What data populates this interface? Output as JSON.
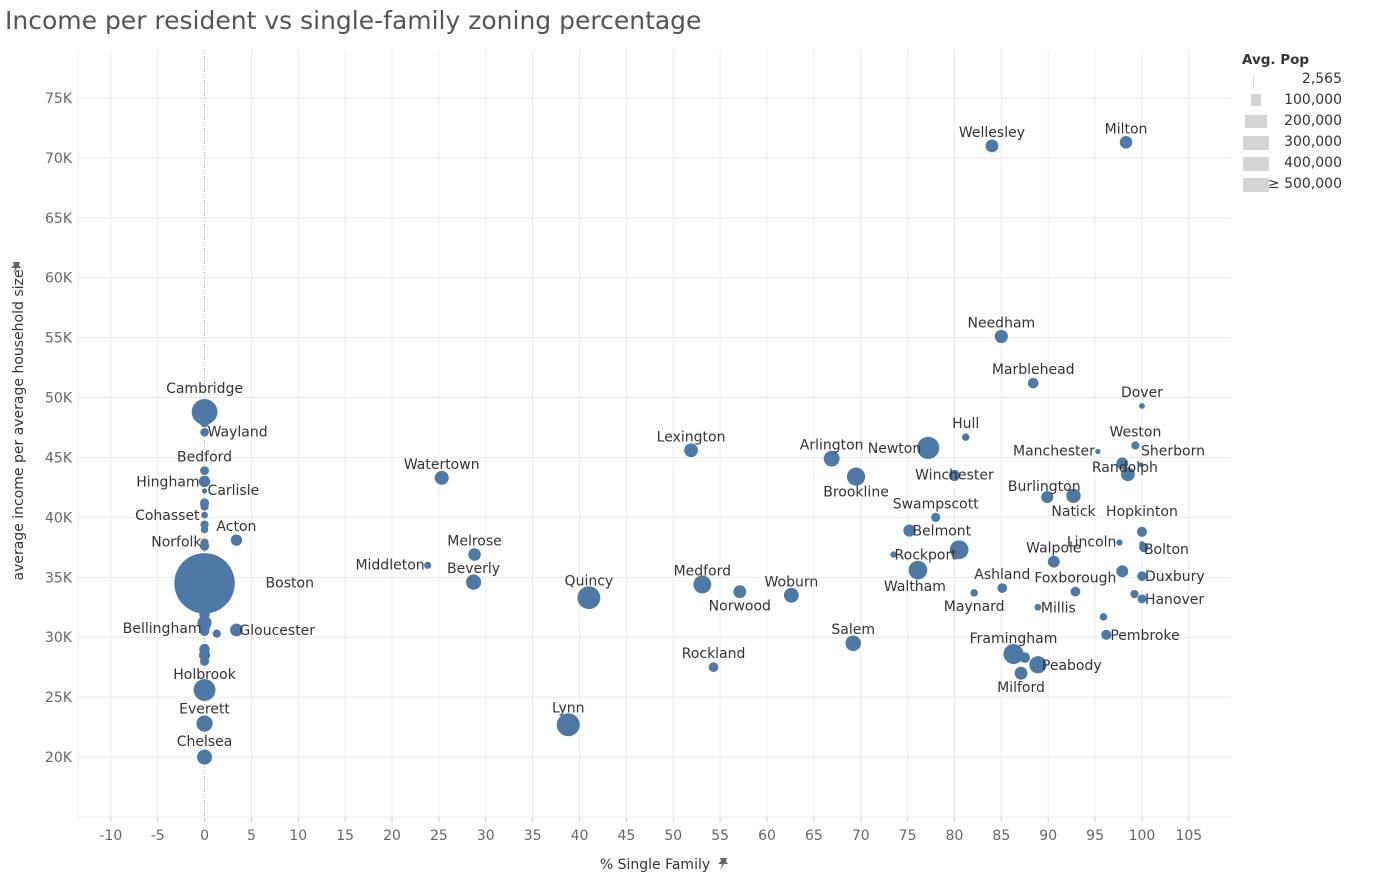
{
  "title": "Income per resident vs single-family zoning percentage",
  "legend": {
    "title": "Avg. Pop",
    "items": [
      "2,565",
      "100,000",
      "200,000",
      "300,000",
      "400,000",
      "≥ 500,000"
    ]
  },
  "colors": {
    "point": "#4e79a7",
    "grid": "#ececec",
    "zeroline": "#b0b0b0"
  },
  "chart_data": {
    "type": "scatter",
    "title": "Income per resident vs single-family zoning percentage",
    "xlabel": "% Single Family",
    "ylabel": "average income per average household size",
    "xlim": [
      -13.5,
      109.5
    ],
    "ylim": [
      15000,
      79000
    ],
    "xticks": [
      -10,
      -5,
      0,
      5,
      10,
      15,
      20,
      25,
      30,
      35,
      40,
      45,
      50,
      55,
      60,
      65,
      70,
      75,
      80,
      85,
      90,
      95,
      100,
      105
    ],
    "xtick_labels": [
      "-10",
      "-5",
      "0",
      "5",
      "10",
      "15",
      "20",
      "25",
      "30",
      "35",
      "40",
      "45",
      "50",
      "55",
      "60",
      "65",
      "70",
      "75",
      "80",
      "85",
      "90",
      "95",
      "100",
      "105"
    ],
    "yticks": [
      20000,
      25000,
      30000,
      35000,
      40000,
      45000,
      50000,
      55000,
      60000,
      65000,
      70000,
      75000
    ],
    "ytick_labels": [
      "20K",
      "25K",
      "30K",
      "35K",
      "40K",
      "45K",
      "50K",
      "55K",
      "60K",
      "65K",
      "70K",
      "75K"
    ],
    "grid": true,
    "legend_position": "top-right",
    "points": [
      {
        "label": "Wellesley",
        "x": 84,
        "y": 71000,
        "pop": 29000,
        "lx": 0,
        "ly": -9,
        "anchor": "middle"
      },
      {
        "label": "Milton",
        "x": 98.3,
        "y": 71300,
        "pop": 28000,
        "lx": 0,
        "ly": -9,
        "anchor": "middle"
      },
      {
        "label": "Needham",
        "x": 85,
        "y": 55100,
        "pop": 31000,
        "lx": 0,
        "ly": -9,
        "anchor": "middle"
      },
      {
        "label": "Marblehead",
        "x": 88.4,
        "y": 51200,
        "pop": 20000,
        "lx": 0,
        "ly": -9,
        "anchor": "middle"
      },
      {
        "label": "Dover",
        "x": 100,
        "y": 49300,
        "pop": 6000,
        "lx": 0,
        "ly": -9,
        "anchor": "middle"
      },
      {
        "label": "Cambridge",
        "x": 0,
        "y": 48800,
        "pop": 118000,
        "lx": 0,
        "ly": -19,
        "anchor": "middle"
      },
      {
        "label": null,
        "x": 0,
        "y": 47900,
        "pop": 15000
      },
      {
        "label": "Wayland",
        "x": 0,
        "y": 47100,
        "pop": 13000,
        "lx": 3,
        "ly": 4,
        "anchor": "start"
      },
      {
        "label": "Hull",
        "x": 81.2,
        "y": 46700,
        "pop": 10000,
        "lx": 0,
        "ly": -9,
        "anchor": "middle"
      },
      {
        "label": "Weston",
        "x": 99.3,
        "y": 46000,
        "pop": 12000,
        "lx": 0,
        "ly": -9,
        "anchor": "middle"
      },
      {
        "label": "Newton",
        "x": 77.2,
        "y": 45800,
        "pop": 88000,
        "lx": -7,
        "ly": 5,
        "anchor": "end"
      },
      {
        "label": "Lexington",
        "x": 51.9,
        "y": 45600,
        "pop": 34000,
        "lx": 0,
        "ly": -9,
        "anchor": "middle"
      },
      {
        "label": "Manchester",
        "x": 95.3,
        "y": 45500,
        "pop": 5000,
        "lx": -3,
        "ly": 4,
        "anchor": "end"
      },
      {
        "label": "Arlington",
        "x": 66.9,
        "y": 44900,
        "pop": 45000,
        "lx": 0,
        "ly": -9,
        "anchor": "middle"
      },
      {
        "label": "Sherborn",
        "x": 99.9,
        "y": 44400,
        "pop": 4000,
        "lx": 0,
        "ly": -9,
        "anchor": "start"
      },
      {
        "label": null,
        "x": 97.9,
        "y": 44500,
        "pop": 25000
      },
      {
        "label": "Randolph",
        "x": 98.5,
        "y": 43600,
        "pop": 34000,
        "lx": -3,
        "ly": -2,
        "anchor": "middle"
      },
      {
        "label": "Bedford",
        "x": 0,
        "y": 43900,
        "pop": 14000,
        "lx": 0,
        "ly": -9,
        "anchor": "middle"
      },
      {
        "label": "Winchester",
        "x": 80,
        "y": 43500,
        "pop": 22000,
        "lx": 0,
        "ly": 4,
        "anchor": "middle"
      },
      {
        "label": "Brookline",
        "x": 69.5,
        "y": 43400,
        "pop": 59000,
        "lx": 0,
        "ly": 20,
        "anchor": "middle"
      },
      {
        "label": "Watertown",
        "x": 25.3,
        "y": 43300,
        "pop": 35000,
        "lx": 0,
        "ly": -9,
        "anchor": "middle"
      },
      {
        "label": "Hingham",
        "x": 0,
        "y": 43000,
        "pop": 23000,
        "lx": -5,
        "ly": 5,
        "anchor": "end"
      },
      {
        "label": "Carlisle",
        "x": 0,
        "y": 42200,
        "pop": 5000,
        "lx": 3,
        "ly": 4,
        "anchor": "start"
      },
      {
        "label": "Burlington",
        "x": 89.9,
        "y": 41700,
        "pop": 26000,
        "lx": -3,
        "ly": -6,
        "anchor": "middle"
      },
      {
        "label": "Natick",
        "x": 92.7,
        "y": 41800,
        "pop": 36000,
        "lx": 0,
        "ly": 20,
        "anchor": "middle"
      },
      {
        "label": null,
        "x": 0,
        "y": 41200,
        "pop": 15000
      },
      {
        "label": null,
        "x": 0,
        "y": 40900,
        "pop": 12000
      },
      {
        "label": "Cohasset",
        "x": 0,
        "y": 40200,
        "pop": 8000,
        "lx": -5,
        "ly": 5,
        "anchor": "end"
      },
      {
        "label": "Swampscott",
        "x": 78,
        "y": 40000,
        "pop": 15000,
        "lx": 0,
        "ly": -9,
        "anchor": "middle"
      },
      {
        "label": null,
        "x": 0,
        "y": 39400,
        "pop": 12000
      },
      {
        "label": "Belmont",
        "x": 75.2,
        "y": 38900,
        "pop": 26000,
        "lx": 3,
        "ly": 5,
        "anchor": "start"
      },
      {
        "label": null,
        "x": 0,
        "y": 39000,
        "pop": 10000
      },
      {
        "label": "Hopkinton",
        "x": 100,
        "y": 38800,
        "pop": 18000,
        "lx": 0,
        "ly": -16,
        "anchor": "middle"
      },
      {
        "label": "Acton",
        "x": 3.4,
        "y": 38100,
        "pop": 23000,
        "lx": 0,
        "ly": -9,
        "anchor": "middle"
      },
      {
        "label": "Norfolk",
        "x": 0,
        "y": 37900,
        "pop": 12000,
        "lx": -3,
        "ly": 4,
        "anchor": "end"
      },
      {
        "label": null,
        "x": 0,
        "y": 37600,
        "pop": 15000
      },
      {
        "label": "Lincoln",
        "x": 97.6,
        "y": 37900,
        "pop": 7000,
        "lx": -3,
        "ly": 4,
        "anchor": "end"
      },
      {
        "label": "Bolton",
        "x": 100,
        "y": 37800,
        "pop": 5000,
        "lx": 2,
        "ly": 10,
        "anchor": "start"
      },
      {
        "label": null,
        "x": 100.2,
        "y": 37500,
        "pop": 16000
      },
      {
        "label": "Melrose",
        "x": 28.8,
        "y": 36900,
        "pop": 28000,
        "lx": 0,
        "ly": -9,
        "anchor": "middle"
      },
      {
        "label": "Rockport",
        "x": 73.5,
        "y": 36900,
        "pop": 7000,
        "lx": 1,
        "ly": 5,
        "anchor": "start"
      },
      {
        "label": "Walpole",
        "x": 90.6,
        "y": 36300,
        "pop": 25000,
        "lx": 0,
        "ly": -9,
        "anchor": "middle"
      },
      {
        "label": null,
        "x": 80.5,
        "y": 37300,
        "pop": 62000
      },
      {
        "label": "Middleton",
        "x": 23.8,
        "y": 36000,
        "pop": 9000,
        "lx": -3,
        "ly": 4,
        "anchor": "end"
      },
      {
        "label": "Waltham",
        "x": 76.1,
        "y": 35600,
        "pop": 62000,
        "lx": -3,
        "ly": 21,
        "anchor": "middle"
      },
      {
        "label": null,
        "x": 97.9,
        "y": 35500,
        "pop": 25000
      },
      {
        "label": "Duxbury",
        "x": 100,
        "y": 35100,
        "pop": 16000,
        "lx": 3,
        "ly": 5,
        "anchor": "start"
      },
      {
        "label": "Beverly",
        "x": 28.7,
        "y": 34600,
        "pop": 41000,
        "lx": 0,
        "ly": -9,
        "anchor": "middle"
      },
      {
        "label": "Boston",
        "x": 0,
        "y": 34500,
        "pop": 650000,
        "lx": 61,
        "ly": 4,
        "anchor": "start"
      },
      {
        "label": "Medford",
        "x": 53.1,
        "y": 34400,
        "pop": 57000,
        "lx": 0,
        "ly": -9,
        "anchor": "middle"
      },
      {
        "label": "Ashland",
        "x": 85.1,
        "y": 34100,
        "pop": 17000,
        "lx": 0,
        "ly": -9,
        "anchor": "middle"
      },
      {
        "label": "Foxborough",
        "x": 92.9,
        "y": 33800,
        "pop": 17000,
        "lx": 0,
        "ly": -9,
        "anchor": "middle"
      },
      {
        "label": "Norwood",
        "x": 57.1,
        "y": 33800,
        "pop": 29000,
        "lx": 0,
        "ly": 19,
        "anchor": "middle"
      },
      {
        "label": "Maynard",
        "x": 82.1,
        "y": 33700,
        "pop": 10000,
        "lx": 0,
        "ly": 18,
        "anchor": "middle"
      },
      {
        "label": null,
        "x": 99.2,
        "y": 33600,
        "pop": 12000
      },
      {
        "label": "Woburn",
        "x": 62.6,
        "y": 33500,
        "pop": 39000,
        "lx": 0,
        "ly": -9,
        "anchor": "middle"
      },
      {
        "label": "Quincy",
        "x": 41,
        "y": 33300,
        "pop": 93000,
        "lx": 0,
        "ly": -12,
        "anchor": "middle"
      },
      {
        "label": "Hanover",
        "x": 100,
        "y": 33200,
        "pop": 14000,
        "lx": 3,
        "ly": 5,
        "anchor": "start"
      },
      {
        "label": "Millis",
        "x": 88.9,
        "y": 32500,
        "pop": 8000,
        "lx": 3,
        "ly": 5,
        "anchor": "start"
      },
      {
        "label": null,
        "x": 0,
        "y": 31900,
        "pop": 20000
      },
      {
        "label": null,
        "x": 95.9,
        "y": 31700,
        "pop": 10000
      },
      {
        "label": null,
        "x": 0,
        "y": 31200,
        "pop": 35000
      },
      {
        "label": "Gloucester",
        "x": 3.4,
        "y": 30600,
        "pop": 29000,
        "lx": 3,
        "ly": 5,
        "anchor": "start"
      },
      {
        "label": null,
        "x": 0,
        "y": 30700,
        "pop": 18000
      },
      {
        "label": "Bellingham",
        "x": 0,
        "y": 30500,
        "pop": 16000,
        "lx": -3,
        "ly": 2,
        "anchor": "end"
      },
      {
        "label": null,
        "x": 1.3,
        "y": 30300,
        "pop": 12000
      },
      {
        "label": "Pembroke",
        "x": 96.2,
        "y": 30200,
        "pop": 18000,
        "lx": 4,
        "ly": 5,
        "anchor": "start"
      },
      {
        "label": "Salem",
        "x": 69.2,
        "y": 29500,
        "pop": 43000,
        "lx": 0,
        "ly": -9,
        "anchor": "middle"
      },
      {
        "label": null,
        "x": 0,
        "y": 29000,
        "pop": 20000
      },
      {
        "label": "Framingham",
        "x": 86.3,
        "y": 28600,
        "pop": 72000,
        "lx": 0,
        "ly": -11,
        "anchor": "middle"
      },
      {
        "label": null,
        "x": 0,
        "y": 28500,
        "pop": 22000
      },
      {
        "label": null,
        "x": 87.5,
        "y": 28300,
        "pop": 20000
      },
      {
        "label": null,
        "x": 0,
        "y": 28000,
        "pop": 15000
      },
      {
        "label": "Peabody",
        "x": 88.9,
        "y": 27700,
        "pop": 53000,
        "lx": 4,
        "ly": 5,
        "anchor": "start"
      },
      {
        "label": "Rockland",
        "x": 54.3,
        "y": 27500,
        "pop": 17000,
        "lx": 0,
        "ly": -9,
        "anchor": "middle"
      },
      {
        "label": "Milford",
        "x": 87.1,
        "y": 27000,
        "pop": 29000,
        "lx": 0,
        "ly": 19,
        "anchor": "middle"
      },
      {
        "label": "Holbrook",
        "x": 0,
        "y": 25600,
        "pop": 85000,
        "lx": 0,
        "ly": -11,
        "anchor": "middle"
      },
      {
        "label": "Everett",
        "x": 0,
        "y": 22800,
        "pop": 47000,
        "lx": 0,
        "ly": -10,
        "anchor": "middle"
      },
      {
        "label": "Lynn",
        "x": 38.8,
        "y": 22700,
        "pop": 94000,
        "lx": 0,
        "ly": -12,
        "anchor": "middle"
      },
      {
        "label": "Chelsea",
        "x": 0,
        "y": 20000,
        "pop": 40000,
        "lx": 0,
        "ly": -11,
        "anchor": "middle"
      }
    ]
  }
}
